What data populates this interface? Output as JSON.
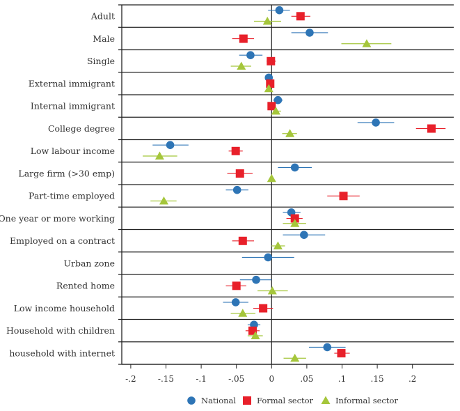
{
  "chart_data": {
    "type": "scatter",
    "subtype": "coefficient-plot-with-confidence-intervals",
    "orientation": "horizontal",
    "xlim": [
      -0.22,
      0.25
    ],
    "xticks": [
      -0.2,
      -0.15,
      -0.1,
      -0.05,
      0,
      0.05,
      0.1,
      0.15,
      0.2
    ],
    "xtick_labels": [
      "-.2",
      "-.15",
      "-.1",
      "-.05",
      "0",
      ".05",
      ".1",
      ".15",
      ".2"
    ],
    "reference_line": 0,
    "grid": "horizontal row separators",
    "legend_position": "bottom",
    "categories": [
      "Adult",
      "Male",
      "Single",
      "External immigrant",
      "Internal immigrant",
      "College degree",
      "Low labour income",
      "Large firm (>30 emp)",
      "Part-time employed",
      "One year or more working",
      "Employed on a contract",
      "Urban zone",
      "Rented home",
      "Low income household",
      "Household with children",
      "household with internet"
    ],
    "series": [
      {
        "name": "National",
        "marker": "circle",
        "color": "#2e75b6",
        "values": [
          0.011,
          0.054,
          -0.03,
          -0.004,
          0.009,
          0.148,
          -0.144,
          0.033,
          -0.049,
          0.028,
          0.046,
          -0.005,
          -0.022,
          -0.051,
          -0.025,
          0.079
        ],
        "ci_low": [
          -0.005,
          0.028,
          -0.046,
          -0.006,
          0.002,
          0.122,
          -0.169,
          0.009,
          -0.065,
          0.016,
          0.016,
          -0.042,
          -0.045,
          -0.069,
          -0.034,
          0.053
        ],
        "ci_high": [
          0.026,
          0.08,
          -0.013,
          -0.002,
          0.016,
          0.174,
          -0.118,
          0.057,
          -0.033,
          0.041,
          0.076,
          0.032,
          0.0,
          -0.033,
          -0.016,
          0.105
        ]
      },
      {
        "name": "Formal sector",
        "marker": "square",
        "color": "#e8202a",
        "values": [
          0.041,
          -0.04,
          -0.001,
          -0.002,
          0.0,
          0.227,
          -0.051,
          -0.045,
          0.102,
          0.033,
          -0.041,
          null,
          -0.05,
          -0.012,
          -0.027,
          0.099
        ],
        "ci_low": [
          0.028,
          -0.056,
          -0.007,
          -0.004,
          -0.005,
          0.205,
          -0.061,
          -0.063,
          0.079,
          0.021,
          -0.056,
          null,
          -0.065,
          -0.026,
          -0.037,
          0.089
        ],
        "ci_high": [
          0.055,
          -0.025,
          0.006,
          0.0,
          0.005,
          0.247,
          -0.041,
          -0.027,
          0.125,
          0.044,
          -0.025,
          null,
          -0.036,
          0.002,
          -0.017,
          0.111
        ]
      },
      {
        "name": "Informal sector",
        "marker": "triangle",
        "color": "#a5c63b",
        "values": [
          -0.006,
          0.135,
          -0.043,
          -0.004,
          0.006,
          0.026,
          -0.159,
          0.0,
          -0.153,
          0.033,
          0.009,
          null,
          0.001,
          -0.041,
          -0.023,
          0.033
        ],
        "ci_low": [
          -0.025,
          0.099,
          -0.058,
          -0.006,
          0.002,
          0.015,
          -0.183,
          -0.002,
          -0.172,
          0.016,
          0.0,
          null,
          -0.02,
          -0.058,
          -0.034,
          0.017
        ],
        "ci_high": [
          0.0135,
          0.17,
          -0.029,
          -0.002,
          0.0135,
          0.036,
          -0.134,
          0.002,
          -0.135,
          0.049,
          0.019,
          null,
          0.023,
          -0.023,
          -0.0125,
          0.049
        ]
      }
    ]
  }
}
